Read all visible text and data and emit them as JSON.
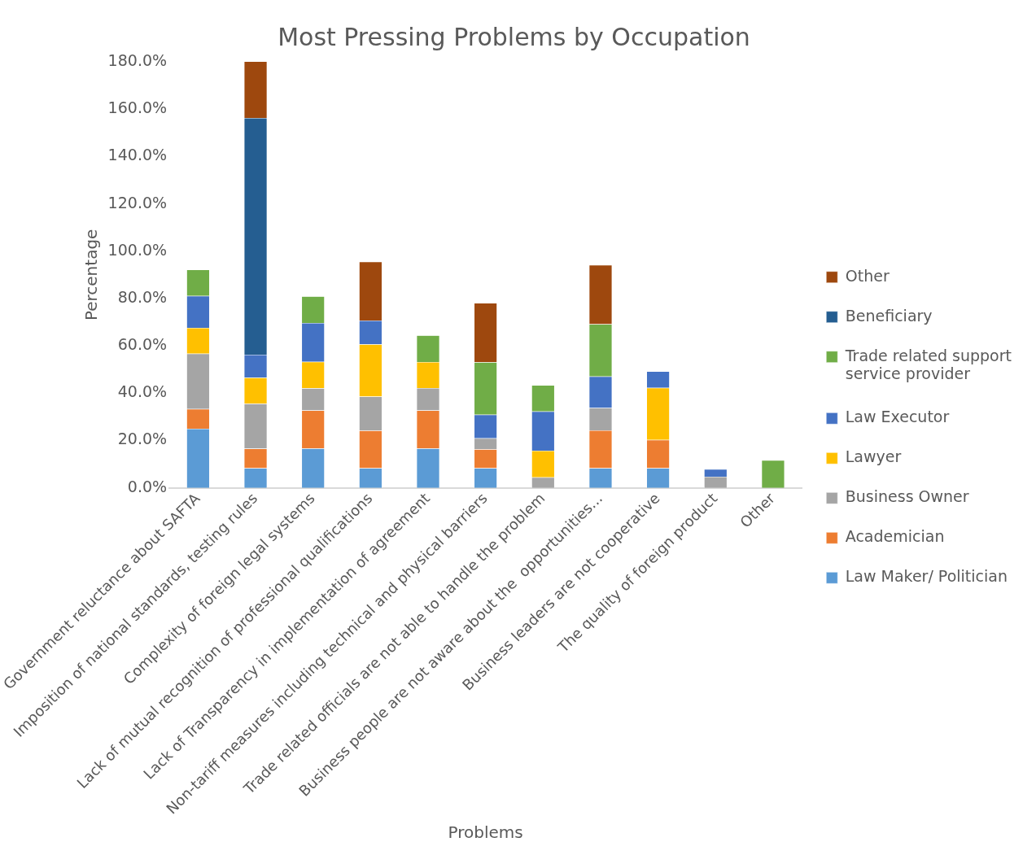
{
  "chart_data": {
    "type": "bar",
    "title": "Most Pressing Problems by Occupation",
    "xlabel": "Problems",
    "ylabel": "Percentage",
    "categories": [
      "Government reluctance about SAFTA",
      "Imposition of national standards, testing rules",
      "Complexity of foreign legal systems",
      "Lack of mutual recognition of professional qualifications",
      "Lack of Transparency in implementation of agreement",
      "Non-tariff measures including technical and physical barriers",
      "Trade related officials are not able to handle the problem",
      "Business people are not aware about the  opportunities...",
      "Business leaders are not cooperative",
      "The quality of foreign product",
      "Other"
    ],
    "stacked": true,
    "ylim": [
      0,
      180
    ],
    "yticks": [
      {
        "value": 0,
        "label": "0.0%"
      },
      {
        "value": 20,
        "label": "20.0%"
      },
      {
        "value": 40,
        "label": "40.0%"
      },
      {
        "value": 60,
        "label": "60.0%"
      },
      {
        "value": 80,
        "label": "80.0%"
      },
      {
        "value": 100,
        "label": "100.0%"
      },
      {
        "value": 120,
        "label": "120.0%"
      },
      {
        "value": 140,
        "label": "140.0%"
      },
      {
        "value": 160,
        "label": "160.0%"
      },
      {
        "value": 180,
        "label": "180.0%"
      }
    ],
    "grid": false,
    "legend": "right",
    "series": [
      {
        "name": "Law Maker/ Politician",
        "color": "#5b9bd5",
        "values": [
          25,
          8.3,
          16.7,
          8.3,
          16.7,
          8.3,
          null,
          8.3,
          8.3,
          null,
          null
        ]
      },
      {
        "name": "Academician",
        "color": "#ed7d31",
        "values": [
          8.3,
          8.3,
          16,
          15.9,
          16,
          8,
          null,
          16,
          12,
          null,
          null
        ]
      },
      {
        "name": "Business Owner",
        "color": "#a5a5a5",
        "values": [
          23.4,
          19,
          9.4,
          14.4,
          9.5,
          4.7,
          4.5,
          9.5,
          null,
          4.7,
          null
        ]
      },
      {
        "name": "Lawyer",
        "color": "#ffc000",
        "values": [
          10.9,
          11,
          11.2,
          22.1,
          11,
          null,
          11.2,
          null,
          22,
          null,
          null
        ]
      },
      {
        "name": "Law Executor",
        "color": "#4472c4",
        "values": [
          13.5,
          9.7,
          16.4,
          10,
          null,
          9.9,
          16.6,
          13.3,
          6.9,
          3.2,
          null
        ]
      },
      {
        "name": "Trade related support service provider",
        "color": "#70ad47",
        "values": [
          11.1,
          null,
          11.2,
          null,
          11.2,
          22.2,
          11.1,
          22.1,
          null,
          null,
          11.7
        ]
      },
      {
        "name": "Beneficiary",
        "color": "#255e91",
        "values": [
          null,
          100,
          null,
          null,
          null,
          null,
          null,
          null,
          null,
          null,
          null
        ]
      },
      {
        "name": "Other",
        "color": "#9e480e",
        "values": [
          null,
          24,
          null,
          24.8,
          null,
          25,
          null,
          25,
          null,
          null,
          null
        ]
      }
    ]
  }
}
